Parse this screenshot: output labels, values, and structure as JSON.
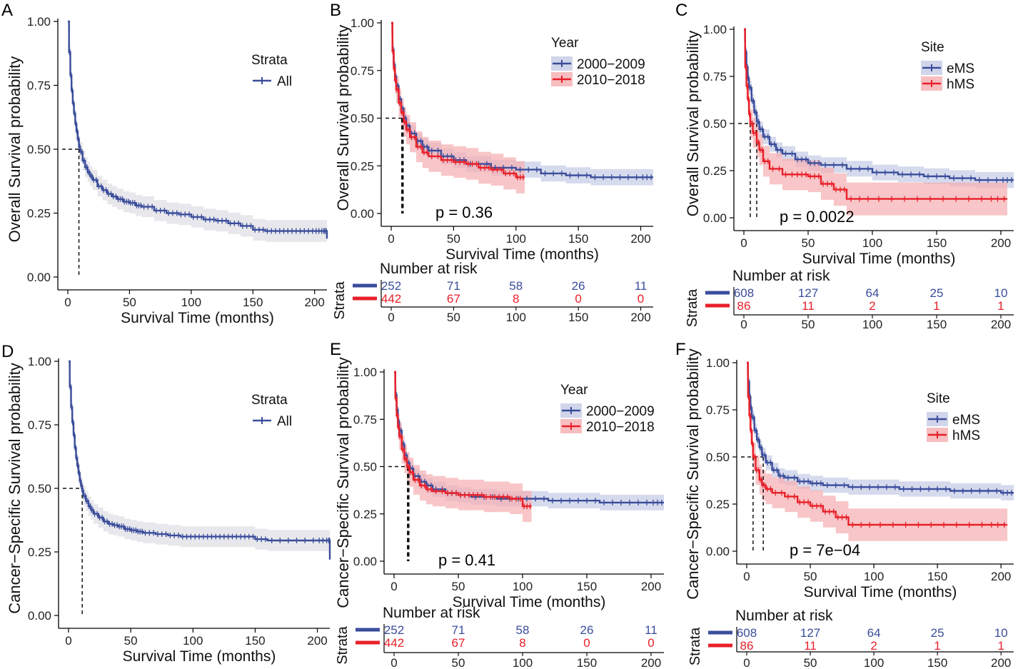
{
  "colors": {
    "blue": "#3a4d9b",
    "red": "#e8202a",
    "blueBand": "#c5cbe5",
    "redBand": "#f5aeb0",
    "grayBand": "#e6e6ea"
  },
  "chart_data": [
    {
      "letter": "A",
      "type": "line",
      "ylabel": "Overall Survival probability",
      "xlabel": "Survival Time (months)",
      "xticks": [
        "0",
        "50",
        "100",
        "150",
        "200"
      ],
      "yticks": [
        "0.00",
        "0.25",
        "0.50",
        "0.75",
        "1.00"
      ],
      "xlim": [
        0,
        210
      ],
      "ylim": [
        0,
        1
      ],
      "legend": {
        "title": "Strata",
        "items": [
          "All"
        ]
      },
      "median": 9,
      "series": [
        {
          "name": "All",
          "color": "blue",
          "band": "grayBand",
          "x": [
            0,
            1,
            2,
            3,
            4,
            5,
            6,
            7,
            8,
            9,
            10,
            12,
            14,
            16,
            18,
            20,
            24,
            28,
            32,
            36,
            40,
            45,
            50,
            55,
            60,
            70,
            80,
            90,
            100,
            110,
            120,
            130,
            140,
            150,
            160,
            170,
            180,
            190,
            200,
            207,
            210
          ],
          "y": [
            1.0,
            0.88,
            0.79,
            0.73,
            0.68,
            0.64,
            0.6,
            0.57,
            0.54,
            0.51,
            0.49,
            0.455,
            0.43,
            0.41,
            0.395,
            0.38,
            0.355,
            0.34,
            0.325,
            0.315,
            0.305,
            0.295,
            0.29,
            0.28,
            0.275,
            0.26,
            0.25,
            0.245,
            0.235,
            0.225,
            0.22,
            0.21,
            0.2,
            0.185,
            0.18,
            0.18,
            0.18,
            0.18,
            0.18,
            0.18,
            0.15
          ]
        }
      ]
    },
    {
      "letter": "B",
      "type": "line",
      "ylabel": "Overall Survival probability",
      "xlabel": "Survival Time (months)",
      "xticks": [
        "0",
        "50",
        "100",
        "150",
        "200"
      ],
      "yticks": [
        "0.00",
        "0.25",
        "0.50",
        "0.75",
        "1.00"
      ],
      "xlim": [
        0,
        210
      ],
      "ylim": [
        0,
        1
      ],
      "legend": {
        "title": "Year",
        "items": [
          "2000−2009",
          "2010−2018"
        ]
      },
      "pvalue": "p = 0.36",
      "median": 9,
      "series": [
        {
          "name": "2000−2009",
          "color": "blue",
          "band": "blueBand",
          "x": [
            0,
            1,
            2,
            3,
            4,
            6,
            8,
            10,
            12,
            15,
            20,
            25,
            30,
            40,
            50,
            60,
            80,
            100,
            120,
            140,
            160,
            180,
            200,
            210
          ],
          "y": [
            1.0,
            0.86,
            0.78,
            0.72,
            0.67,
            0.6,
            0.55,
            0.5,
            0.46,
            0.42,
            0.38,
            0.35,
            0.33,
            0.3,
            0.28,
            0.26,
            0.24,
            0.23,
            0.21,
            0.2,
            0.19,
            0.19,
            0.19,
            0.19
          ]
        },
        {
          "name": "2010−2018",
          "color": "red",
          "band": "redBand",
          "x": [
            0,
            1,
            2,
            3,
            4,
            6,
            8,
            10,
            12,
            15,
            20,
            25,
            30,
            40,
            50,
            60,
            70,
            80,
            90,
            100,
            107
          ],
          "y": [
            1.0,
            0.85,
            0.76,
            0.7,
            0.65,
            0.58,
            0.53,
            0.48,
            0.44,
            0.4,
            0.35,
            0.32,
            0.3,
            0.28,
            0.27,
            0.26,
            0.24,
            0.23,
            0.21,
            0.19,
            0.19
          ]
        }
      ],
      "risk": {
        "title": "Number at risk",
        "rows": [
          {
            "color": "blue",
            "values": [
              "252",
              "71",
              "58",
              "26",
              "11"
            ]
          },
          {
            "color": "red",
            "values": [
              "442",
              "67",
              "8",
              "0",
              "0"
            ]
          }
        ]
      }
    },
    {
      "letter": "C",
      "type": "line",
      "ylabel": "Overall Survival probability",
      "xlabel": "Survival Time (months)",
      "xticks": [
        "0",
        "50",
        "100",
        "150",
        "200"
      ],
      "yticks": [
        "0.00",
        "0.25",
        "0.50",
        "0.75",
        "1.00"
      ],
      "xlim": [
        0,
        210
      ],
      "ylim": [
        0,
        1
      ],
      "legend": {
        "title": "Site",
        "items": [
          "eMS",
          "hMS"
        ]
      },
      "pvalue": "p = 0.0022",
      "median": [
        5,
        10
      ],
      "series": [
        {
          "name": "eMS",
          "color": "blue",
          "band": "blueBand",
          "x": [
            0,
            1,
            2,
            3,
            4,
            6,
            8,
            10,
            12,
            15,
            20,
            25,
            30,
            40,
            50,
            60,
            80,
            100,
            120,
            140,
            160,
            180,
            200,
            210
          ],
          "y": [
            1.0,
            0.88,
            0.8,
            0.74,
            0.69,
            0.62,
            0.56,
            0.51,
            0.47,
            0.43,
            0.39,
            0.36,
            0.34,
            0.31,
            0.29,
            0.28,
            0.26,
            0.24,
            0.23,
            0.22,
            0.21,
            0.2,
            0.2,
            0.2
          ]
        },
        {
          "name": "hMS",
          "color": "red",
          "band": "redBand",
          "x": [
            0,
            1,
            2,
            3,
            4,
            5,
            7,
            10,
            12,
            15,
            20,
            30,
            40,
            50,
            60,
            70,
            80,
            100,
            130,
            160,
            190,
            205
          ],
          "y": [
            1.0,
            0.8,
            0.7,
            0.63,
            0.55,
            0.5,
            0.45,
            0.4,
            0.36,
            0.3,
            0.26,
            0.23,
            0.23,
            0.22,
            0.18,
            0.15,
            0.1,
            0.1,
            0.1,
            0.1,
            0.1,
            0.1
          ]
        }
      ],
      "risk": {
        "title": "Number at risk",
        "rows": [
          {
            "color": "blue",
            "values": [
              "608",
              "127",
              "64",
              "25",
              "10"
            ]
          },
          {
            "color": "red",
            "values": [
              "86",
              "11",
              "2",
              "1",
              "1"
            ]
          }
        ]
      }
    },
    {
      "letter": "D",
      "type": "line",
      "ylabel": "Cancer−Specific Survival probability",
      "xlabel": "Survival Time (months)",
      "xticks": [
        "0",
        "50",
        "100",
        "150",
        "200"
      ],
      "yticks": [
        "0.00",
        "0.25",
        "0.50",
        "0.75",
        "1.00"
      ],
      "xlim": [
        0,
        210
      ],
      "ylim": [
        0,
        1
      ],
      "legend": {
        "title": "Strata",
        "items": [
          "All"
        ]
      },
      "median": 11,
      "series": [
        {
          "name": "All",
          "color": "blue",
          "band": "grayBand",
          "x": [
            0,
            1,
            2,
            3,
            4,
            5,
            6,
            7,
            8,
            9,
            10,
            11,
            12,
            14,
            16,
            18,
            20,
            24,
            28,
            32,
            36,
            40,
            45,
            50,
            55,
            60,
            70,
            80,
            90,
            100,
            110,
            120,
            130,
            140,
            150,
            160,
            180,
            200,
            209,
            210
          ],
          "y": [
            1.0,
            0.9,
            0.82,
            0.76,
            0.71,
            0.66,
            0.62,
            0.59,
            0.56,
            0.53,
            0.51,
            0.49,
            0.47,
            0.45,
            0.43,
            0.415,
            0.4,
            0.385,
            0.37,
            0.36,
            0.355,
            0.35,
            0.34,
            0.335,
            0.33,
            0.325,
            0.32,
            0.315,
            0.31,
            0.31,
            0.31,
            0.31,
            0.31,
            0.31,
            0.3,
            0.295,
            0.295,
            0.295,
            0.295,
            0.22
          ]
        }
      ]
    },
    {
      "letter": "E",
      "type": "line",
      "ylabel": "Cancer−Specific Survival probability",
      "xlabel": "Survival Time (months)",
      "xticks": [
        "0",
        "50",
        "100",
        "150",
        "200"
      ],
      "yticks": [
        "0.00",
        "0.25",
        "0.50",
        "0.75",
        "1.00"
      ],
      "xlim": [
        0,
        210
      ],
      "ylim": [
        0,
        1
      ],
      "legend": {
        "title": "Year",
        "items": [
          "2000−2009",
          "2010−2018"
        ]
      },
      "pvalue": "p = 0.41",
      "median": 11,
      "series": [
        {
          "name": "2000−2009",
          "color": "blue",
          "band": "blueBand",
          "x": [
            0,
            1,
            2,
            3,
            4,
            6,
            8,
            10,
            12,
            15,
            20,
            25,
            30,
            40,
            50,
            60,
            80,
            100,
            120,
            140,
            160,
            180,
            200,
            210
          ],
          "y": [
            1.0,
            0.88,
            0.8,
            0.74,
            0.69,
            0.62,
            0.56,
            0.52,
            0.49,
            0.45,
            0.42,
            0.4,
            0.38,
            0.36,
            0.35,
            0.34,
            0.33,
            0.33,
            0.32,
            0.32,
            0.31,
            0.31,
            0.31,
            0.31
          ]
        },
        {
          "name": "2010−2018",
          "color": "red",
          "band": "redBand",
          "x": [
            0,
            1,
            2,
            3,
            4,
            6,
            8,
            10,
            12,
            15,
            20,
            25,
            30,
            40,
            50,
            60,
            70,
            80,
            90,
            100,
            107
          ],
          "y": [
            1.0,
            0.86,
            0.77,
            0.71,
            0.66,
            0.59,
            0.54,
            0.5,
            0.47,
            0.43,
            0.4,
            0.38,
            0.37,
            0.36,
            0.35,
            0.35,
            0.34,
            0.34,
            0.33,
            0.29,
            0.29
          ]
        }
      ],
      "risk": {
        "title": "Number at risk",
        "rows": [
          {
            "color": "blue",
            "values": [
              "252",
              "71",
              "58",
              "26",
              "11"
            ]
          },
          {
            "color": "red",
            "values": [
              "442",
              "67",
              "8",
              "0",
              "0"
            ]
          }
        ]
      }
    },
    {
      "letter": "F",
      "type": "line",
      "ylabel": "Cancer−Specific Survival probability",
      "xlabel": "Survival Time (months)",
      "xticks": [
        "0",
        "50",
        "100",
        "150",
        "200"
      ],
      "yticks": [
        "0.00",
        "0.25",
        "0.50",
        "0.75",
        "1.00"
      ],
      "xlim": [
        0,
        210
      ],
      "ylim": [
        0,
        1
      ],
      "legend": {
        "title": "Site",
        "items": [
          "eMS",
          "hMS"
        ]
      },
      "pvalue": "p = 7e−04",
      "median": [
        5,
        13
      ],
      "series": [
        {
          "name": "eMS",
          "color": "blue",
          "band": "blueBand",
          "x": [
            0,
            1,
            2,
            3,
            4,
            6,
            8,
            10,
            12,
            15,
            20,
            25,
            30,
            40,
            50,
            60,
            80,
            100,
            120,
            140,
            160,
            180,
            200,
            210
          ],
          "y": [
            1.0,
            0.9,
            0.82,
            0.76,
            0.71,
            0.64,
            0.59,
            0.55,
            0.51,
            0.47,
            0.43,
            0.4,
            0.39,
            0.37,
            0.36,
            0.35,
            0.34,
            0.34,
            0.33,
            0.33,
            0.32,
            0.32,
            0.31,
            0.31
          ]
        },
        {
          "name": "hMS",
          "color": "red",
          "band": "redBand",
          "x": [
            0,
            1,
            2,
            3,
            4,
            5,
            7,
            10,
            12,
            15,
            20,
            30,
            40,
            50,
            60,
            70,
            80,
            100,
            130,
            160,
            190,
            205
          ],
          "y": [
            1.0,
            0.82,
            0.72,
            0.64,
            0.57,
            0.5,
            0.43,
            0.38,
            0.35,
            0.33,
            0.31,
            0.29,
            0.26,
            0.24,
            0.21,
            0.18,
            0.14,
            0.14,
            0.14,
            0.14,
            0.14,
            0.14
          ]
        }
      ],
      "risk": {
        "title": "Number at risk",
        "rows": [
          {
            "color": "blue",
            "values": [
              "608",
              "127",
              "64",
              "25",
              "10"
            ]
          },
          {
            "color": "red",
            "values": [
              "86",
              "11",
              "2",
              "1",
              "1"
            ]
          }
        ]
      }
    }
  ],
  "strata_label": "Strata"
}
